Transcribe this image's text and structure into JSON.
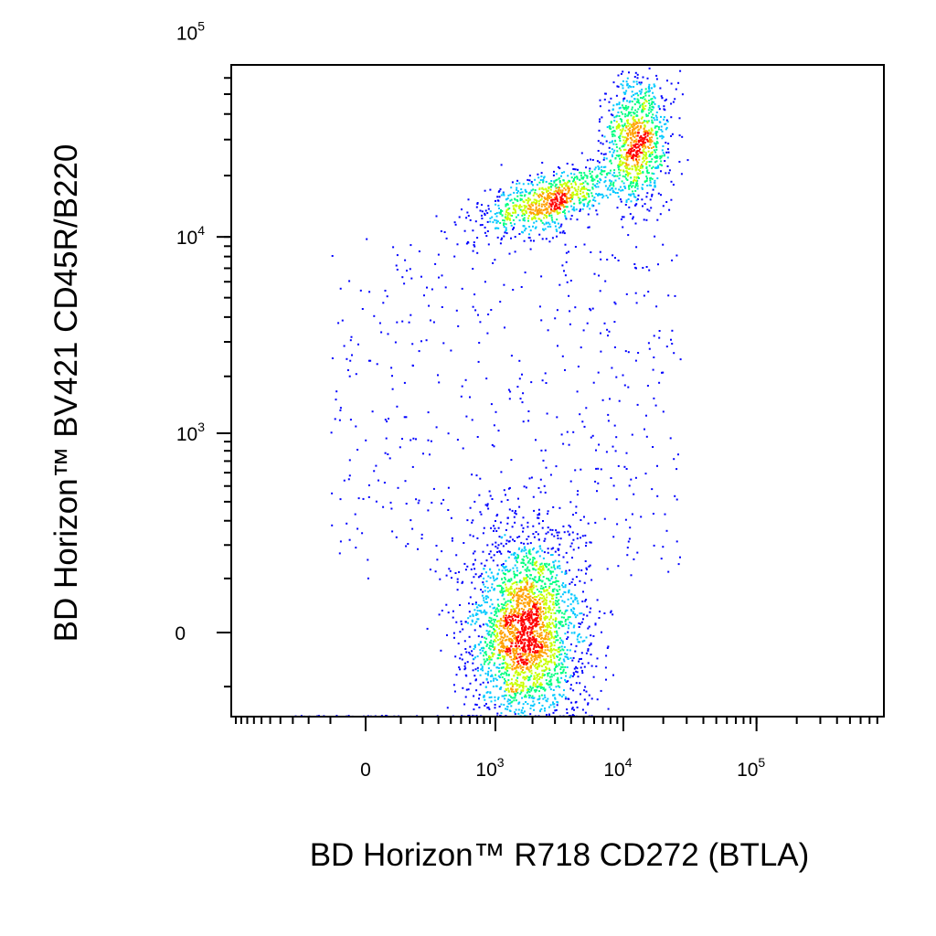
{
  "chart_data": {
    "type": "scatter",
    "subtype": "flow-cytometry-density-dot-plot",
    "title": "",
    "xlabel": "BD Horizon™ R718 CD272 (BTLA)",
    "ylabel": "BD Horizon™ BV421 CD45R/B220",
    "x_scale": "biexponential",
    "y_scale": "biexponential",
    "x_ticks": [
      {
        "value": 0,
        "base": "0",
        "exp": ""
      },
      {
        "value": 1000,
        "base": "10",
        "exp": "3"
      },
      {
        "value": 10000,
        "base": "10",
        "exp": "4"
      },
      {
        "value": 100000,
        "base": "10",
        "exp": "5"
      }
    ],
    "y_ticks": [
      {
        "value": 0,
        "base": "0",
        "exp": ""
      },
      {
        "value": 1000,
        "base": "10",
        "exp": "3"
      },
      {
        "value": 10000,
        "base": "10",
        "exp": "4"
      },
      {
        "value": 100000,
        "base": "10",
        "exp": "5"
      }
    ],
    "xlim": [
      -600,
      250000
    ],
    "ylim": [
      -350,
      200000
    ],
    "grid": false,
    "legend": "none",
    "density_colors": [
      "#0000ff",
      "#00c8ff",
      "#00ff80",
      "#c8ff00",
      "#ffa000",
      "#ff0000"
    ],
    "populations": [
      {
        "name": "",
        "center": {
          "x": 1800,
          "y": 0
        },
        "approx_count": 2600,
        "description_ranges": {
          "x": [
            500,
            6000
          ],
          "y": [
            -300,
            350
          ]
        }
      },
      {
        "name": "",
        "center": {
          "x": 13000,
          "y": 30000
        },
        "approx_count": 900,
        "description_ranges": {
          "x": [
            7000,
            25000
          ],
          "y": [
            15000,
            80000
          ]
        }
      },
      {
        "name": "",
        "center": {
          "x": 2500,
          "y": 15000
        },
        "approx_count": 900,
        "description_ranges": {
          "x": [
            400,
            10000
          ],
          "y": [
            8000,
            30000
          ]
        }
      },
      {
        "name": "",
        "center": {
          "x": 1200,
          "y": 500
        },
        "approx_count": 500,
        "description_ranges": {
          "x": [
            -400,
            15000
          ],
          "y": [
            100,
            10000
          ]
        }
      },
      {
        "name": "",
        "center": {
          "x": 1000,
          "y": -340
        },
        "approx_count": 120,
        "description_ranges": {
          "x": [
            -300,
            6000
          ],
          "y": [
            -345,
            -335
          ]
        }
      }
    ]
  }
}
